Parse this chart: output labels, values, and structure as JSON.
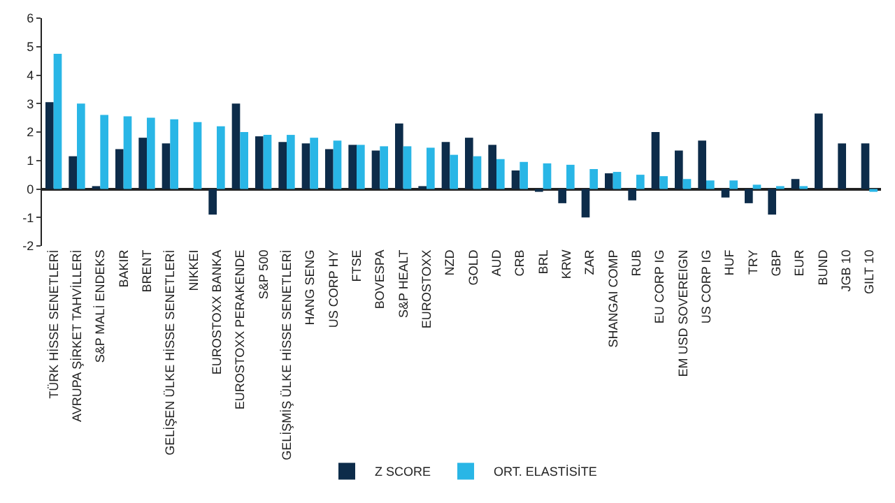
{
  "chart_data": {
    "type": "bar",
    "categories": [
      "TÜRK HİSSE SENETLERİ",
      "AVRUPA ŞİRKET TAHVİLLERİ",
      "S&P MALİ ENDEKS",
      "BAKIR",
      "BRENT",
      "GELİŞEN ÜLKE HİSSE SENETLERİ",
      "NIKKEI",
      "EUROSTOXX BANKA",
      "EUROSTOXX PERAKENDE",
      "S&P 500",
      "GELİŞMİŞ ÜLKE HİSSE SENETLERİ",
      "HANG SENG",
      "US CORP HY",
      "FTSE",
      "BOVESPA",
      "S&P HEALT",
      "EUROSTOXX",
      "NZD",
      "GOLD",
      "AUD",
      "CRB",
      "BRL",
      "KRW",
      "ZAR",
      "SHANGAI COMP",
      "RUB",
      "EU CORP IG",
      "EM USD SOVEREIGN",
      "US CORP IG",
      "HUF",
      "TRY",
      "GBP",
      "EUR",
      "BUND",
      "JGB 10",
      "GILT 10"
    ],
    "series": [
      {
        "name": "Z SCORE",
        "color": "#0d2c4a",
        "values": [
          3.05,
          1.15,
          0.1,
          1.4,
          1.8,
          1.6,
          0,
          -0.9,
          3.0,
          1.85,
          1.65,
          1.6,
          1.4,
          1.55,
          1.35,
          2.3,
          0.1,
          1.65,
          1.8,
          1.55,
          0.65,
          -0.1,
          -0.5,
          -1.0,
          0.55,
          -0.4,
          2.0,
          1.35,
          1.7,
          -0.3,
          -0.5,
          -0.9,
          0.35,
          2.65,
          1.6,
          1.6
        ]
      },
      {
        "name": "ORT. ELASTİSİTE",
        "color": "#29b6e6",
        "values": [
          4.75,
          3.0,
          2.6,
          2.55,
          2.5,
          2.45,
          2.35,
          2.2,
          2.0,
          1.9,
          1.9,
          1.8,
          1.7,
          1.55,
          1.5,
          1.5,
          1.45,
          1.2,
          1.15,
          1.05,
          0.95,
          0.9,
          0.85,
          0.7,
          0.6,
          0.5,
          0.45,
          0.35,
          0.3,
          0.3,
          0.15,
          0.1,
          0.1,
          0,
          0,
          -0.1
        ]
      }
    ],
    "ylim": [
      -2,
      6
    ],
    "yticks": [
      -2,
      -1,
      0,
      1,
      2,
      3,
      4,
      5,
      6
    ],
    "legend": "bottom"
  }
}
